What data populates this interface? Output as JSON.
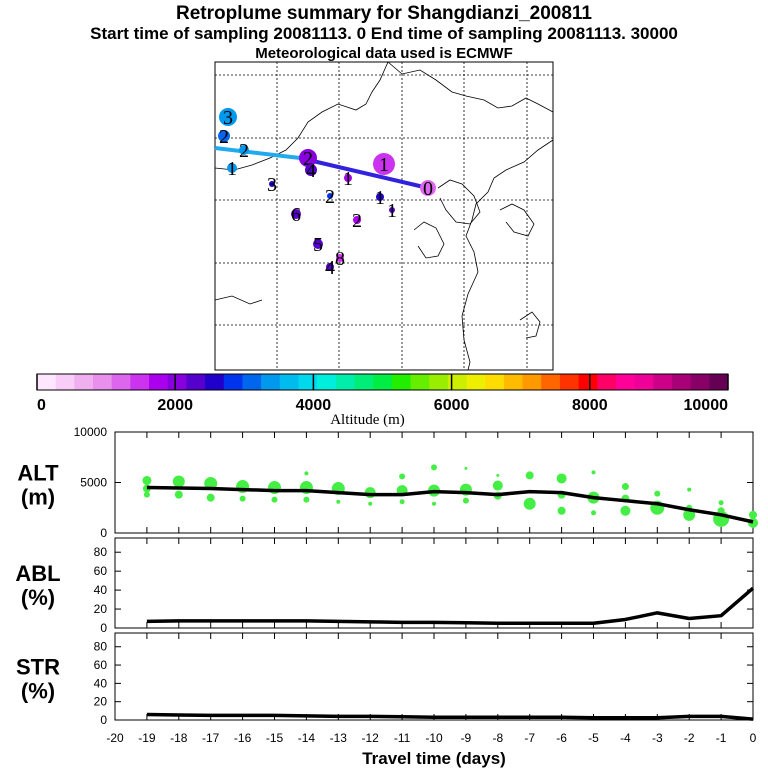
{
  "header": {
    "title": "Retroplume summary for Shangdianzi_200811",
    "sampling_line": "Start time of sampling 20081113.    0     End time of sampling 20081113. 30000",
    "met_line": "Meteorological data used is ECMWF"
  },
  "colorbar": {
    "tick_labels": [
      "0",
      "2000",
      "4000",
      "6000",
      "8000",
      "10000"
    ],
    "label": "Altitude (m)",
    "colors": [
      "#ffe6ff",
      "#f8cdf8",
      "#f0b0f0",
      "#e890ec",
      "#dd66ee",
      "#cc33ee",
      "#aa00ee",
      "#8800dd",
      "#5500cc",
      "#2200cc",
      "#0033ee",
      "#0066ee",
      "#0099ee",
      "#00bbee",
      "#00d8ee",
      "#00eedd",
      "#00eeaa",
      "#00ee77",
      "#00ee44",
      "#22ee00",
      "#66ee00",
      "#99ee00",
      "#ccee00",
      "#eeee00",
      "#ffdd00",
      "#ffbb00",
      "#ff9900",
      "#ff6600",
      "#ff3300",
      "#ff0000",
      "#ff0066",
      "#ff0099",
      "#ee0099",
      "#cc0088",
      "#aa0077",
      "#880066",
      "#660055"
    ]
  },
  "map": {
    "dots": [
      {
        "label": "3",
        "alt": 3300,
        "size": 9
      },
      {
        "label": "2",
        "alt": 3100,
        "size": 6
      },
      {
        "label": "2",
        "alt": 3500,
        "size": 5
      },
      {
        "label": "1",
        "alt": 3300,
        "size": 5
      },
      {
        "label": "2",
        "alt": 2100,
        "size": 9
      },
      {
        "label": "4",
        "alt": 2200,
        "size": 6
      },
      {
        "label": "1",
        "alt": 1500,
        "size": 11
      },
      {
        "label": "1",
        "alt": 2500,
        "size": 4
      },
      {
        "label": "3",
        "alt": 2500,
        "size": 3
      },
      {
        "label": "2",
        "alt": 2800,
        "size": 3
      },
      {
        "label": "6",
        "alt": 2300,
        "size": 5
      },
      {
        "label": "2",
        "alt": 1800,
        "size": 4
      },
      {
        "label": "1",
        "alt": 2400,
        "size": 3
      },
      {
        "label": "5",
        "alt": 2300,
        "size": 5
      },
      {
        "label": "8",
        "alt": 1600,
        "size": 4
      },
      {
        "label": "4",
        "alt": 2200,
        "size": 4
      },
      {
        "label": "1",
        "alt": 1800,
        "size": 4
      },
      {
        "label": "0",
        "alt": 1200,
        "size": 8
      }
    ]
  },
  "chart_data": [
    {
      "type": "line",
      "panel": "ALT",
      "ylabel": "ALT (m)",
      "ylabel_lines": [
        "ALT",
        "(m)"
      ],
      "ytick_labels": [
        "0",
        "5000",
        "10000"
      ],
      "ylim": [
        0,
        10000
      ],
      "xlim": [
        -20,
        0
      ],
      "x": [
        -19,
        -18,
        -17,
        -16,
        -15,
        -14,
        -13,
        -12,
        -11,
        -10,
        -9,
        -8,
        -7,
        -6,
        -5,
        -4,
        -3,
        -2,
        -1,
        0
      ],
      "values": [
        4500,
        4450,
        4400,
        4300,
        4200,
        4200,
        4000,
        3800,
        3800,
        4100,
        4000,
        3800,
        4100,
        4000,
        3500,
        3200,
        2900,
        2300,
        1800,
        1100
      ],
      "scatter": [
        {
          "x": -19,
          "y": 5200,
          "s": 4.5
        },
        {
          "x": -19,
          "y": 4400,
          "s": 4
        },
        {
          "x": -19,
          "y": 3800,
          "s": 3
        },
        {
          "x": -18,
          "y": 5100,
          "s": 6
        },
        {
          "x": -18,
          "y": 3800,
          "s": 4
        },
        {
          "x": -17,
          "y": 4900,
          "s": 6.5
        },
        {
          "x": -17,
          "y": 3500,
          "s": 4
        },
        {
          "x": -16,
          "y": 4600,
          "s": 6.5
        },
        {
          "x": -16,
          "y": 3400,
          "s": 3
        },
        {
          "x": -15,
          "y": 4500,
          "s": 6.5
        },
        {
          "x": -15,
          "y": 3300,
          "s": 3
        },
        {
          "x": -14,
          "y": 5900,
          "s": 2
        },
        {
          "x": -14,
          "y": 4500,
          "s": 6.5
        },
        {
          "x": -14,
          "y": 3300,
          "s": 3
        },
        {
          "x": -13,
          "y": 4400,
          "s": 6.5
        },
        {
          "x": -13,
          "y": 3100,
          "s": 2
        },
        {
          "x": -12,
          "y": 4000,
          "s": 5.5
        },
        {
          "x": -12,
          "y": 2900,
          "s": 2
        },
        {
          "x": -11,
          "y": 5600,
          "s": 3
        },
        {
          "x": -11,
          "y": 4200,
          "s": 5.5
        },
        {
          "x": -11,
          "y": 3100,
          "s": 2.5
        },
        {
          "x": -10,
          "y": 6500,
          "s": 3
        },
        {
          "x": -10,
          "y": 4200,
          "s": 6
        },
        {
          "x": -10,
          "y": 2900,
          "s": 2
        },
        {
          "x": -9,
          "y": 6400,
          "s": 1.5
        },
        {
          "x": -9,
          "y": 4300,
          "s": 6
        },
        {
          "x": -9,
          "y": 3200,
          "s": 3
        },
        {
          "x": -8,
          "y": 5700,
          "s": 1.5
        },
        {
          "x": -8,
          "y": 4700,
          "s": 5
        },
        {
          "x": -8,
          "y": 3700,
          "s": 4
        },
        {
          "x": -7,
          "y": 5700,
          "s": 4
        },
        {
          "x": -7,
          "y": 2900,
          "s": 6
        },
        {
          "x": -6,
          "y": 5400,
          "s": 5
        },
        {
          "x": -6,
          "y": 3800,
          "s": 4
        },
        {
          "x": -6,
          "y": 2200,
          "s": 4
        },
        {
          "x": -5,
          "y": 6000,
          "s": 2
        },
        {
          "x": -5,
          "y": 3500,
          "s": 6
        },
        {
          "x": -5,
          "y": 2000,
          "s": 2.5
        },
        {
          "x": -4,
          "y": 4600,
          "s": 3.5
        },
        {
          "x": -4,
          "y": 3400,
          "s": 4
        },
        {
          "x": -4,
          "y": 2200,
          "s": 5
        },
        {
          "x": -3,
          "y": 3900,
          "s": 3
        },
        {
          "x": -3,
          "y": 2500,
          "s": 7
        },
        {
          "x": -2,
          "y": 4300,
          "s": 2
        },
        {
          "x": -2,
          "y": 2500,
          "s": 3
        },
        {
          "x": -2,
          "y": 1800,
          "s": 6
        },
        {
          "x": -1,
          "y": 3000,
          "s": 2.5
        },
        {
          "x": -1,
          "y": 2200,
          "s": 3.5
        },
        {
          "x": -1,
          "y": 1400,
          "s": 8
        },
        {
          "x": 0,
          "y": 1800,
          "s": 4
        },
        {
          "x": 0,
          "y": 1000,
          "s": 5
        }
      ]
    },
    {
      "type": "line",
      "panel": "ABL",
      "ylabel": "ABL (%)",
      "ylabel_lines": [
        "ABL",
        "(%)"
      ],
      "ytick_labels": [
        "0",
        "20",
        "40",
        "60",
        "80"
      ],
      "ylim": [
        0,
        95
      ],
      "xlim": [
        -20,
        0
      ],
      "x": [
        -19,
        -18,
        -17,
        -16,
        -15,
        -14,
        -13,
        -12,
        -11,
        -10,
        -9,
        -8,
        -7,
        -6,
        -5,
        -4,
        -3,
        -2,
        -1,
        0
      ],
      "values": [
        7,
        7.5,
        7.5,
        7.5,
        7.5,
        7.5,
        7,
        6.5,
        6,
        6,
        5.5,
        5,
        5,
        5,
        5,
        9,
        16,
        10,
        13,
        42
      ]
    },
    {
      "type": "line",
      "panel": "STR",
      "ylabel": "STR (%)",
      "ylabel_lines": [
        "STR",
        "(%)"
      ],
      "ytick_labels": [
        "0",
        "20",
        "40",
        "60",
        "80"
      ],
      "ylim": [
        0,
        95
      ],
      "xlim": [
        -20,
        0
      ],
      "x": [
        -19,
        -18,
        -17,
        -16,
        -15,
        -14,
        -13,
        -12,
        -11,
        -10,
        -9,
        -8,
        -7,
        -6,
        -5,
        -4,
        -3,
        -2,
        -1,
        0
      ],
      "values": [
        6,
        5.5,
        5,
        5,
        5,
        4.5,
        4,
        4,
        3.5,
        3,
        3,
        3,
        3,
        3,
        2.5,
        2.5,
        2.5,
        4,
        4,
        1
      ],
      "xlabel": "Travel time (days)",
      "xtick_labels": [
        "-20",
        "-19",
        "-18",
        "-17",
        "-16",
        "-15",
        "-14",
        "-13",
        "-12",
        "-11",
        "-10",
        "-9",
        "-8",
        "-7",
        "-6",
        "-5",
        "-4",
        "-3",
        "-2",
        "-1",
        "0"
      ]
    }
  ]
}
